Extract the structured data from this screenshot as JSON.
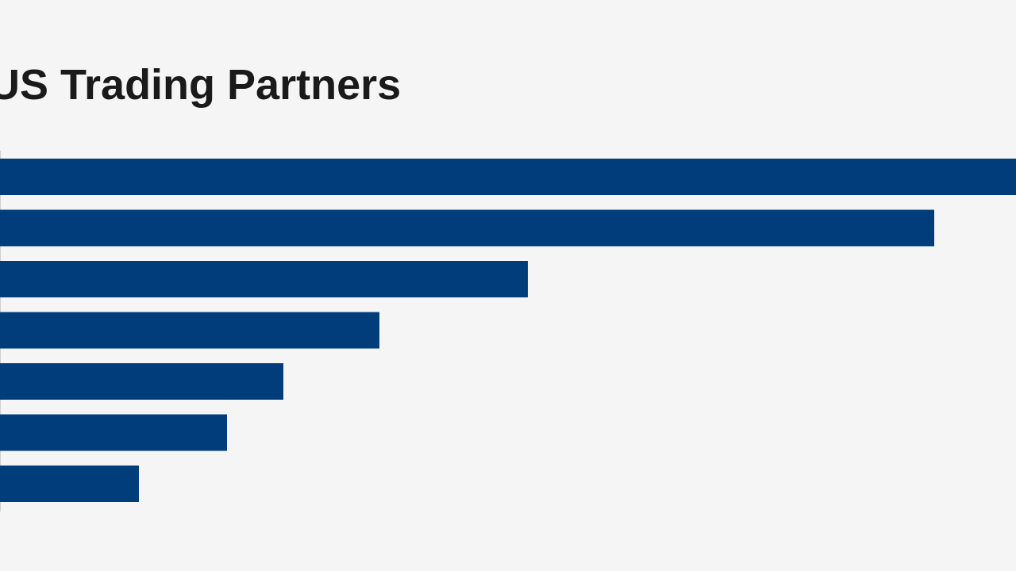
{
  "chart_data": {
    "type": "bar",
    "orientation": "horizontal",
    "title": "US Trading Partners",
    "categories": [
      null,
      null,
      null,
      null,
      null,
      null,
      null
    ],
    "values": [
      1280,
      1177,
      665,
      478,
      357,
      286,
      175
    ],
    "color": "#003d7a",
    "xlim": [
      0,
      1280
    ]
  }
}
